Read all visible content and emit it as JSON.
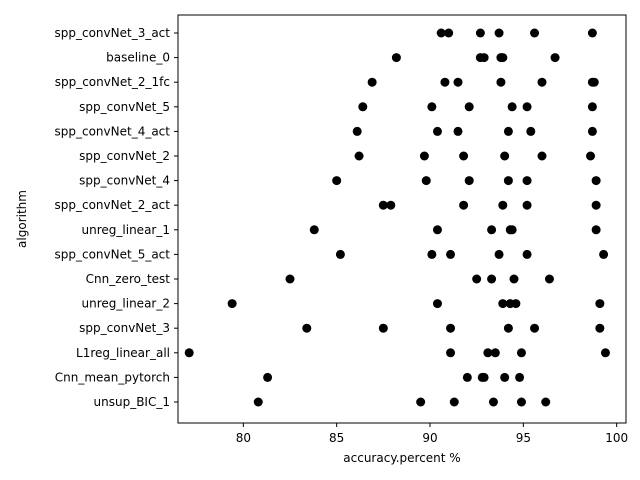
{
  "chart_data": {
    "type": "scatter",
    "title": "",
    "xlabel": "accuracy.percent %",
    "ylabel": "algorithm",
    "xlim": [
      76.5,
      100.5
    ],
    "xticks": [
      80,
      85,
      90,
      95,
      100
    ],
    "grid": false,
    "marker_color": "#000000",
    "categories": [
      "spp_convNet_3_act",
      "baseline_0",
      "spp_convNet_2_1fc",
      "spp_convNet_5",
      "spp_convNet_4_act",
      "spp_convNet_2",
      "spp_convNet_4",
      "spp_convNet_2_act",
      "unreg_linear_1",
      "spp_convNet_5_act",
      "Cnn_zero_test",
      "unreg_linear_2",
      "spp_convNet_3",
      "L1reg_linear_all",
      "Cnn_mean_pytorch",
      "unsup_BIC_1"
    ],
    "values": [
      [
        90.6,
        91.0,
        92.7,
        93.7,
        95.6,
        98.7
      ],
      [
        88.2,
        92.7,
        92.9,
        93.8,
        93.9,
        96.7
      ],
      [
        86.9,
        90.8,
        91.5,
        93.8,
        96.0,
        98.7,
        98.8
      ],
      [
        86.4,
        90.1,
        92.1,
        94.4,
        95.2,
        98.7
      ],
      [
        86.1,
        90.4,
        91.5,
        94.2,
        95.4,
        98.7
      ],
      [
        86.2,
        89.7,
        91.8,
        94.0,
        96.0,
        98.6
      ],
      [
        85.0,
        89.8,
        92.1,
        94.2,
        95.2,
        98.9
      ],
      [
        87.5,
        87.9,
        91.8,
        93.9,
        95.2,
        98.9
      ],
      [
        83.8,
        90.4,
        93.3,
        94.3,
        94.4,
        98.9
      ],
      [
        85.2,
        90.1,
        91.1,
        93.7,
        95.2,
        99.3
      ],
      [
        82.5,
        92.5,
        93.3,
        94.5,
        96.4
      ],
      [
        79.4,
        90.4,
        93.9,
        94.3,
        94.6,
        99.1
      ],
      [
        83.4,
        87.5,
        91.1,
        94.2,
        95.6,
        99.1
      ],
      [
        77.1,
        91.1,
        93.1,
        93.5,
        94.9,
        99.4
      ],
      [
        81.3,
        92.0,
        92.8,
        92.9,
        94.0,
        94.8
      ],
      [
        80.8,
        89.5,
        91.3,
        93.4,
        94.9,
        96.2
      ]
    ]
  }
}
